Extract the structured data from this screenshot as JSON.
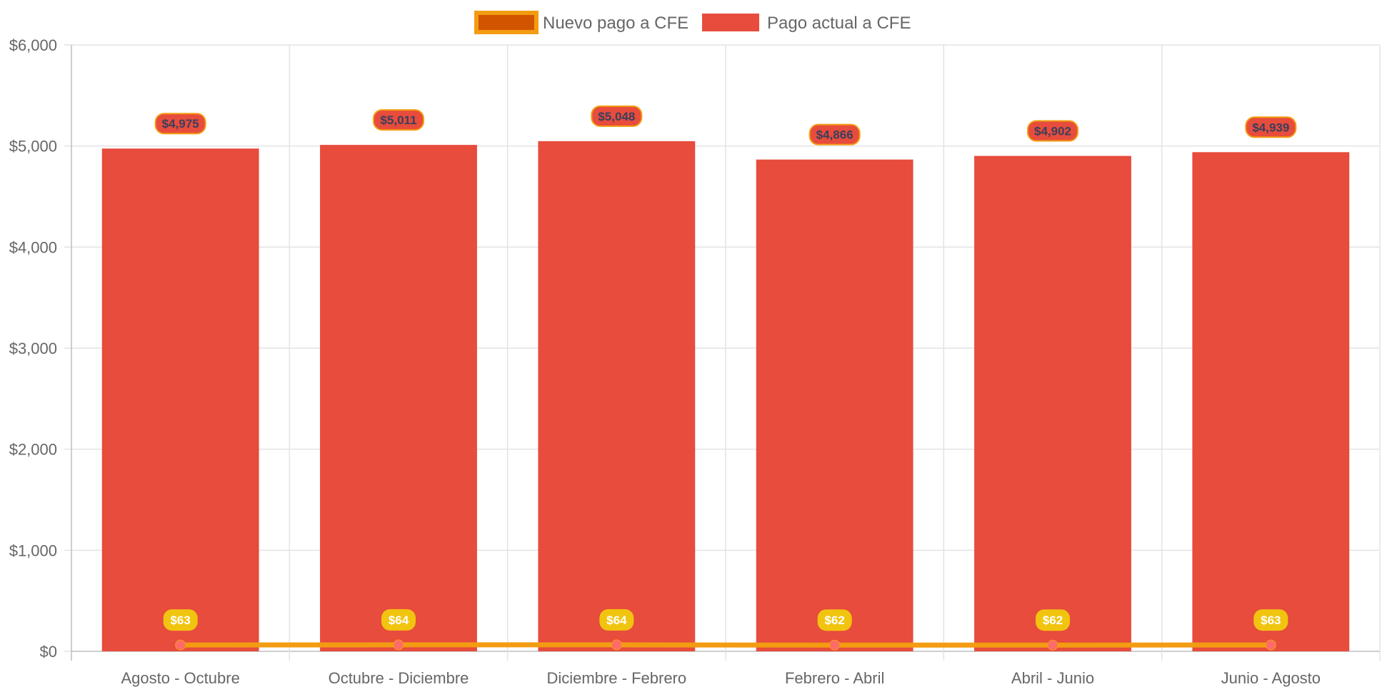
{
  "chart_data": {
    "type": "bar",
    "categories": [
      "Agosto - Octubre",
      "Octubre - Diciembre",
      "Diciembre - Febrero",
      "Febrero - Abril",
      "Abril - Junio",
      "Junio - Agosto"
    ],
    "series": [
      {
        "name": "Pago actual a CFE",
        "type": "bar",
        "values": [
          4975,
          5011,
          5048,
          4866,
          4902,
          4939
        ],
        "labels": [
          "$4,975",
          "$5,011",
          "$5,048",
          "$4,866",
          "$4,902",
          "$4,939"
        ],
        "color": "#e74c3c"
      },
      {
        "name": "Nuevo pago a CFE",
        "type": "line",
        "values": [
          63,
          64,
          64,
          62,
          62,
          63
        ],
        "labels": [
          "$63",
          "$64",
          "$64",
          "$62",
          "$62",
          "$63"
        ],
        "color": "#f39c12",
        "fill_color": "#d35400",
        "point_color": "#ff6b6b"
      }
    ],
    "ylim": [
      0,
      6000
    ],
    "yticks": [
      0,
      1000,
      2000,
      3000,
      4000,
      5000,
      6000
    ],
    "ytick_labels": [
      "$0",
      "$1,000",
      "$2,000",
      "$3,000",
      "$4,000",
      "$5,000",
      "$6,000"
    ],
    "legend_position": "top",
    "grid": true,
    "title": "",
    "xlabel": "",
    "ylabel": ""
  },
  "legend": {
    "items": [
      {
        "label": "Nuevo pago a CFE"
      },
      {
        "label": "Pago actual a CFE"
      }
    ]
  }
}
